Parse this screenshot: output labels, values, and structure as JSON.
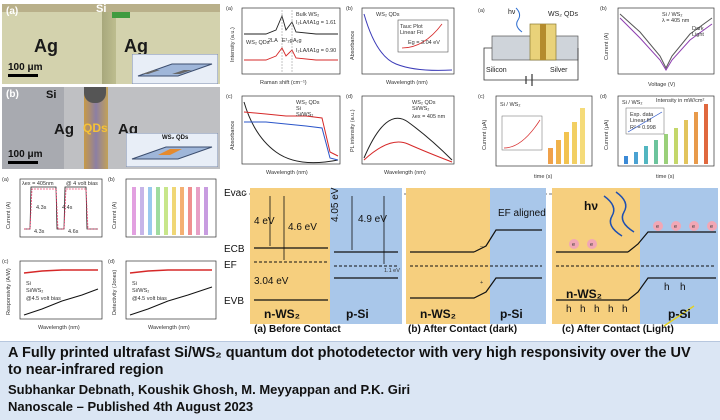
{
  "micrographs": {
    "a": {
      "letter": "(a)",
      "si": "Si",
      "ag_left": "Ag",
      "ag_right": "Ag",
      "scale": "100 μm"
    },
    "b": {
      "letter": "(b)",
      "si": "Si",
      "ag_left": "Ag",
      "qds": "QDs",
      "ag_right": "Ag",
      "scale": "100 μm",
      "inset_label": "WS₂ QDs"
    }
  },
  "raman": {
    "letter": "(a)",
    "legend": [
      "Bulk WS₂",
      "WS₂ QDs"
    ],
    "ratio_top": "I₂LA/IA1g = 1.61",
    "ratio_bottom": "I₂LA/IA1g = 0.90",
    "xlabel": "Raman shift (cm⁻¹)",
    "ylabel": "Intensity (a.u.)",
    "peaks": [
      "2LA",
      "E¹₂g",
      "A₁g"
    ]
  },
  "absorb": {
    "letter": "(b)",
    "legend": "WS₂ QDs",
    "inset_eg": "Eg = 3.04 eV",
    "inset_legend": [
      "Tauc Plot",
      "Linear Fit"
    ],
    "xlabel": "Wavelength (nm)",
    "ylabel": "Absorbance"
  },
  "absorb2": {
    "letter": "(c)",
    "legend": [
      "WS₂ QDs",
      "Si",
      "Si/WS₂"
    ],
    "xlabel": "Wavelength (nm)",
    "ylabel": "Absorbance"
  },
  "pl": {
    "letter": "(d)",
    "legend": [
      "WS₂ QDs",
      "Si/WS₂"
    ],
    "lex": "λex = 405 nm",
    "xlabel": "Wavelength (nm)",
    "ylabel": "PL intensity (a.u.)"
  },
  "device": {
    "letter": "(a)",
    "hv": "hν",
    "qds": "WS₂ QDs",
    "silicon": "Silicon",
    "silver": "Silver"
  },
  "iv": {
    "letter": "(b)",
    "legend_title": "Si / WS₂",
    "lex": "λ = 405 nm",
    "legend": [
      "Dark",
      "Light"
    ],
    "xlabel": "Voltage (V)",
    "ylabel": "Current (A)"
  },
  "bars_left": {
    "letter": "(c)",
    "tag": "Si / WS₂",
    "xlabel": "time (s)",
    "ylabel": "Current (μA)"
  },
  "bars_right": {
    "letter": "(d)",
    "tag": "Si / WS₂",
    "title": "Intensity in mW/cm²",
    "inset_legend": [
      "Exp. data",
      "Linear fit"
    ],
    "inset_r": "R² = 0.998",
    "xlabel": "time (s)",
    "ylabel": "Current (μA)"
  },
  "lower_small": {
    "a": {
      "letter": "(a)",
      "lex": "λex = 405nm",
      "note": "@ 4 volt bias",
      "legend": [
        "Expt.",
        "Fitted"
      ],
      "times": [
        "4.3s",
        "4.4s",
        "4.3s",
        "4.6s"
      ],
      "ylabel": "Current (A)"
    },
    "b": {
      "letter": "(b)",
      "ylabel": "Current (A)"
    },
    "c": {
      "letter": "(c)",
      "legend": [
        "Si",
        "Si/WS₂"
      ],
      "note": "@4.5 volt bias",
      "ylabel": "Responsivity (A/W)",
      "xlabel": "Wavelength (nm)"
    },
    "d": {
      "letter": "(d)",
      "legend": [
        "Si",
        "Si/WS₂"
      ],
      "note": "@4.5 volt bias",
      "ylabel": "Detectivity (Jones)",
      "xlabel": "Wavelength (nm)"
    }
  },
  "band": {
    "evac": "Evac",
    "ecb": "ECB",
    "ef": "EF",
    "evb": "EVB",
    "e4": "4 eV",
    "e46": "4.6 eV",
    "e304": "3.04 eV",
    "e405": "4.05 eV",
    "e49": "4.9 eV",
    "e11": "1.1 eV",
    "nws2": "n-WS₂",
    "psi": "p-Si",
    "ef_aligned": "EF aligned",
    "hv": "hν",
    "cap_a": "(a) Before Contact",
    "cap_b": "(b) After Contact (dark)",
    "cap_c": "(c) After Contact (Light)",
    "e_sym": "e",
    "h_sym": "h"
  },
  "footer": {
    "title": "A Fully printed ultrafast Si/WS₂ quantum dot photodetector with very high responsivity over the UV to near-infrared region",
    "authors": "Subhankar Debnath, Koushik Ghosh, M. Meyyappan and P.K. Giri",
    "journal": "Nanoscale – Published 4th August 2023"
  },
  "colors": {
    "ag": "#d3d2ad",
    "agB": "#bfc0c3",
    "nws2": "#f6cf7e",
    "psi": "#a9c7ea",
    "footer": "#dbe6f4",
    "accent_red": "#d62828"
  }
}
